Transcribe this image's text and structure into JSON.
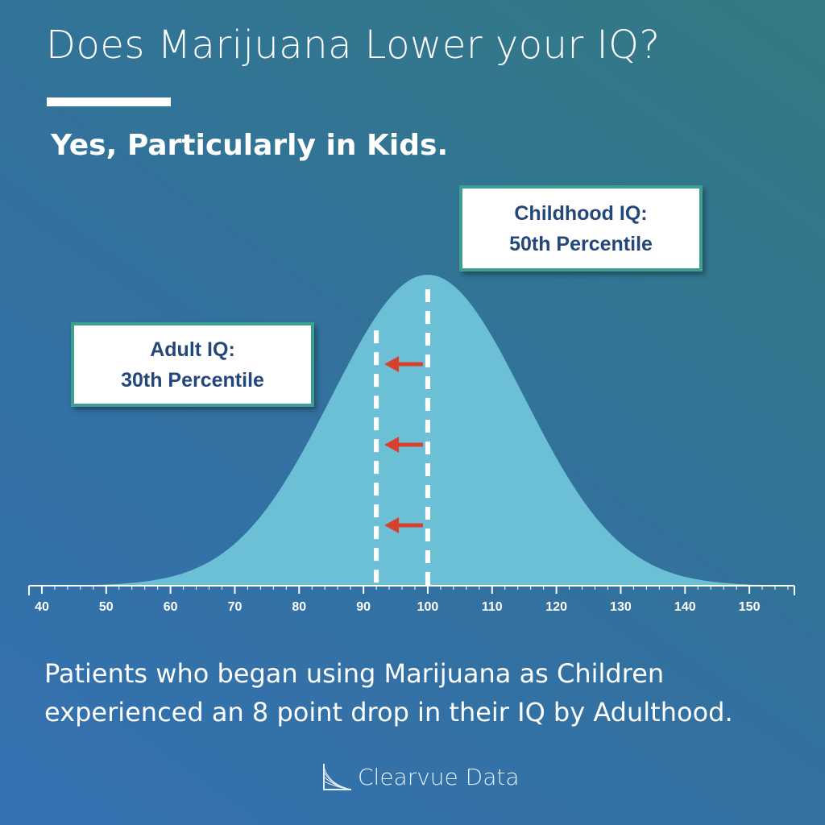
{
  "header": {
    "title": "Does Marijuana Lower your IQ?",
    "subtitle": "Yes, Particularly in Kids."
  },
  "callouts": {
    "childhood": {
      "line1": "Childhood IQ:",
      "line2": "50th Percentile"
    },
    "adult": {
      "line1": "Adult IQ:",
      "line2": "30th Percentile"
    }
  },
  "caption": {
    "line1": "Patients who began using Marijuana as Children",
    "line2": "experienced an 8 point drop in their IQ by Adulthood."
  },
  "brand": {
    "name": "Clearvue Data"
  },
  "colors": {
    "curve_fill": "#6cc0d6",
    "marker_arrow": "#d8412e",
    "callout_border": "#3e9e8f",
    "callout_text": "#24477a"
  },
  "chart_data": {
    "type": "area",
    "distribution": "normal",
    "mean": 100,
    "sd": 15,
    "xlim": [
      38,
      157
    ],
    "x_ticks": [
      40,
      50,
      60,
      70,
      80,
      90,
      100,
      110,
      120,
      130,
      140,
      150
    ],
    "markers": [
      {
        "name": "Childhood IQ",
        "x": 100,
        "percentile": 50
      },
      {
        "name": "Adult IQ",
        "x": 92,
        "percentile": 30
      }
    ],
    "arrows": {
      "from": 100,
      "to": 92,
      "count": 3
    },
    "grid": false
  }
}
